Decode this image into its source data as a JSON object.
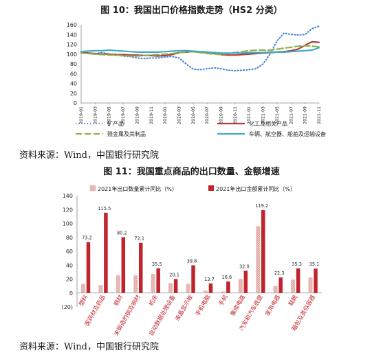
{
  "figure1": {
    "title": "图 10：我国出口价格指数走势（HS2 分类）"
  },
  "figure2": {
    "title": "图 11：我国重点商品的出口数量、金额增速"
  },
  "source1": "资料来源：Wind，中国银行研究院",
  "source2": "资料来源：Wind，中国银行研究院",
  "colors": {
    "mineral": "#3d7fd6",
    "chem": "#b23a3c",
    "metal": "#8fb04a",
    "vehicle": "#3fa9c9",
    "qty": "#d99b96",
    "amt": "#c0252d"
  },
  "chart_data": [
    {
      "type": "line",
      "title": "图 10：我国出口价格指数走势（HS2 分类）",
      "ylim": [
        0,
        160
      ],
      "yticks": [
        0,
        20,
        40,
        60,
        80,
        100,
        120,
        140,
        160
      ],
      "x": [
        "2019-01",
        "2019-02",
        "2019-03",
        "2019-04",
        "2019-05",
        "2019-06",
        "2019-07",
        "2019-08",
        "2019-09",
        "2019-10",
        "2019-11",
        "2019-12",
        "2020-01",
        "2020-02",
        "2020-03",
        "2020-04",
        "2020-05",
        "2020-06",
        "2020-07",
        "2020-08",
        "2020-09",
        "2020-10",
        "2020-11",
        "2020-12",
        "2021-01",
        "2021-02",
        "2021-03",
        "2021-04",
        "2021-05",
        "2021-06",
        "2021-07",
        "2021-08",
        "2021-09",
        "2021-10",
        "2021-11"
      ],
      "xtick_labels": [
        "2019-01",
        "2019-03",
        "2019-05",
        "2019-07",
        "2019-09",
        "2019-11",
        "2020-01",
        "2020-03",
        "2020-05",
        "2020-07",
        "2020-09",
        "2020-11",
        "2021-01",
        "2021-03",
        "2021-05",
        "2021-07",
        "2021-09",
        "2021-11"
      ],
      "series": [
        {
          "name": "矿产品",
          "style": "dotted",
          "values": [
            104,
            102,
            101,
            103,
            100,
            98,
            96,
            95,
            92,
            91,
            92,
            92,
            94,
            95,
            92,
            80,
            69,
            68,
            70,
            72,
            70,
            67,
            66,
            67,
            68,
            70,
            80,
            100,
            127,
            143,
            140,
            139,
            140,
            152,
            157
          ]
        },
        {
          "name": "化工及相关产品",
          "style": "solid",
          "values": [
            103,
            102,
            101,
            100,
            100,
            99,
            99,
            98,
            98,
            97,
            97,
            96,
            97,
            99,
            103,
            104,
            105,
            104,
            103,
            101,
            99,
            98,
            98,
            99,
            100,
            101,
            102,
            103,
            104,
            105,
            107,
            110,
            118,
            125,
            124
          ]
        },
        {
          "name": "贱金属及其制品",
          "style": "dashed",
          "values": [
            102,
            101,
            100,
            99,
            98,
            98,
            97,
            96,
            96,
            97,
            98,
            99,
            100,
            101,
            103,
            104,
            105,
            103,
            101,
            100,
            99,
            101,
            103,
            105,
            107,
            108,
            108,
            108,
            110,
            112,
            114,
            116,
            117,
            116,
            115
          ]
        },
        {
          "name": "车辆、航空器、船舶及运输设备",
          "style": "solid",
          "values": [
            105,
            106,
            107,
            107,
            108,
            107,
            106,
            105,
            104,
            104,
            104,
            104,
            105,
            106,
            107,
            107,
            106,
            105,
            104,
            103,
            102,
            102,
            102,
            102,
            103,
            103,
            103,
            104,
            104,
            104,
            105,
            106,
            107,
            108,
            113
          ]
        }
      ]
    },
    {
      "type": "bar",
      "title": "图 11：我国重点商品的出口数量、金额增速",
      "ylim": [
        -20,
        140
      ],
      "yticks": [
        -20,
        0,
        20,
        40,
        60,
        80,
        100,
        120,
        140
      ],
      "ytick_labels": [
        "(20)",
        "0",
        "20",
        "40",
        "60",
        "80",
        "100",
        "120",
        "140"
      ],
      "categories": [
        "塑料",
        "医药材及药品",
        "钢材",
        "未锻造的铜及铜材",
        "机床",
        "自动数据处理设备",
        "液晶显示板",
        "手机电脑",
        "手机",
        "集成电路",
        "汽车和汽车底盘",
        "家用电器",
        "鞋靴",
        "箱包及类似容器"
      ],
      "series": [
        {
          "name": "2021年出口数量累计同比（%）",
          "values": [
            13,
            11,
            25,
            25,
            27,
            14,
            13,
            3,
            2,
            20,
            96,
            10,
            19,
            22
          ]
        },
        {
          "name": "2021年出口金额累计同比（%）",
          "values": [
            73.2,
            115.5,
            80.2,
            72.1,
            35.5,
            20.1,
            39.8,
            13.7,
            16.6,
            32.0,
            119.2,
            22.3,
            35.3,
            35.1
          ],
          "labels": [
            "73.2",
            "115.5",
            "80.2",
            "72.1",
            "35.5",
            "20.1",
            "39.8",
            "13.7",
            "16.6",
            "32.0",
            "119.2",
            "22.3",
            "35.3",
            "35.1"
          ]
        }
      ]
    }
  ]
}
